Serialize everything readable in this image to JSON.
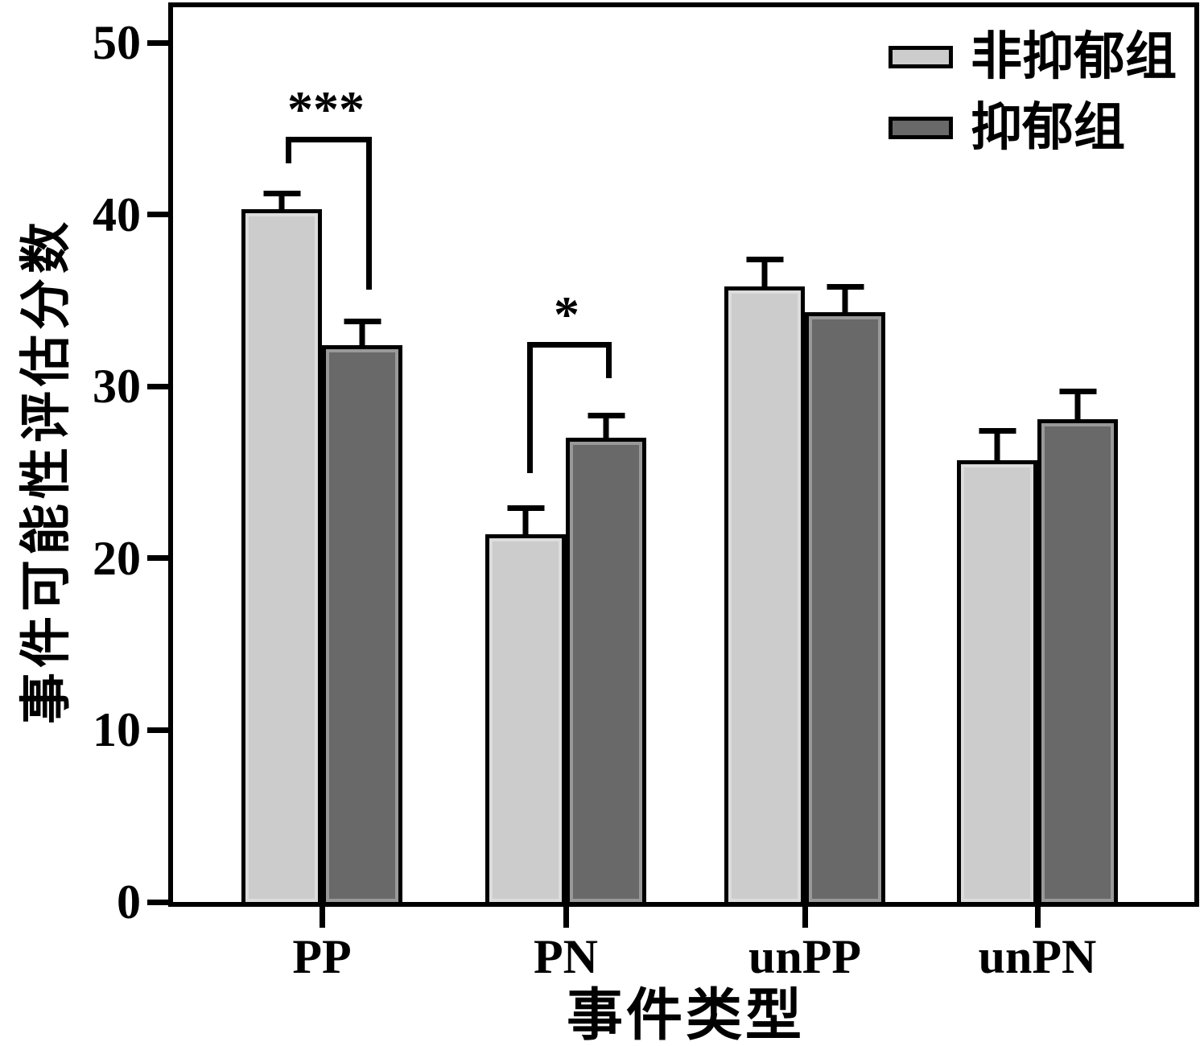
{
  "chart_data": {
    "type": "bar",
    "title": "",
    "xlabel": "事件类型",
    "ylabel": "事件可能性评估分数",
    "categories": [
      "PP",
      "PN",
      "unPP",
      "unPN"
    ],
    "series": [
      {
        "name": "非抑郁组",
        "color": "#cccccc",
        "values": [
          40.3,
          21.4,
          35.8,
          25.7
        ],
        "errors": [
          1.3,
          1.9,
          2.0,
          2.1
        ]
      },
      {
        "name": "抑郁组",
        "color": "#696969",
        "values": [
          32.4,
          27.0,
          34.3,
          28.1
        ],
        "errors": [
          1.8,
          1.7,
          1.9,
          2.0
        ]
      }
    ],
    "ylim": [
      0,
      50
    ],
    "yticks": [
      0,
      10,
      20,
      30,
      40,
      50
    ],
    "grid": false,
    "legend_position": "top-right",
    "error_bars": "upper-only",
    "significance": [
      {
        "category": "PP",
        "label": "***"
      },
      {
        "category": "PN",
        "label": "*"
      }
    ]
  }
}
